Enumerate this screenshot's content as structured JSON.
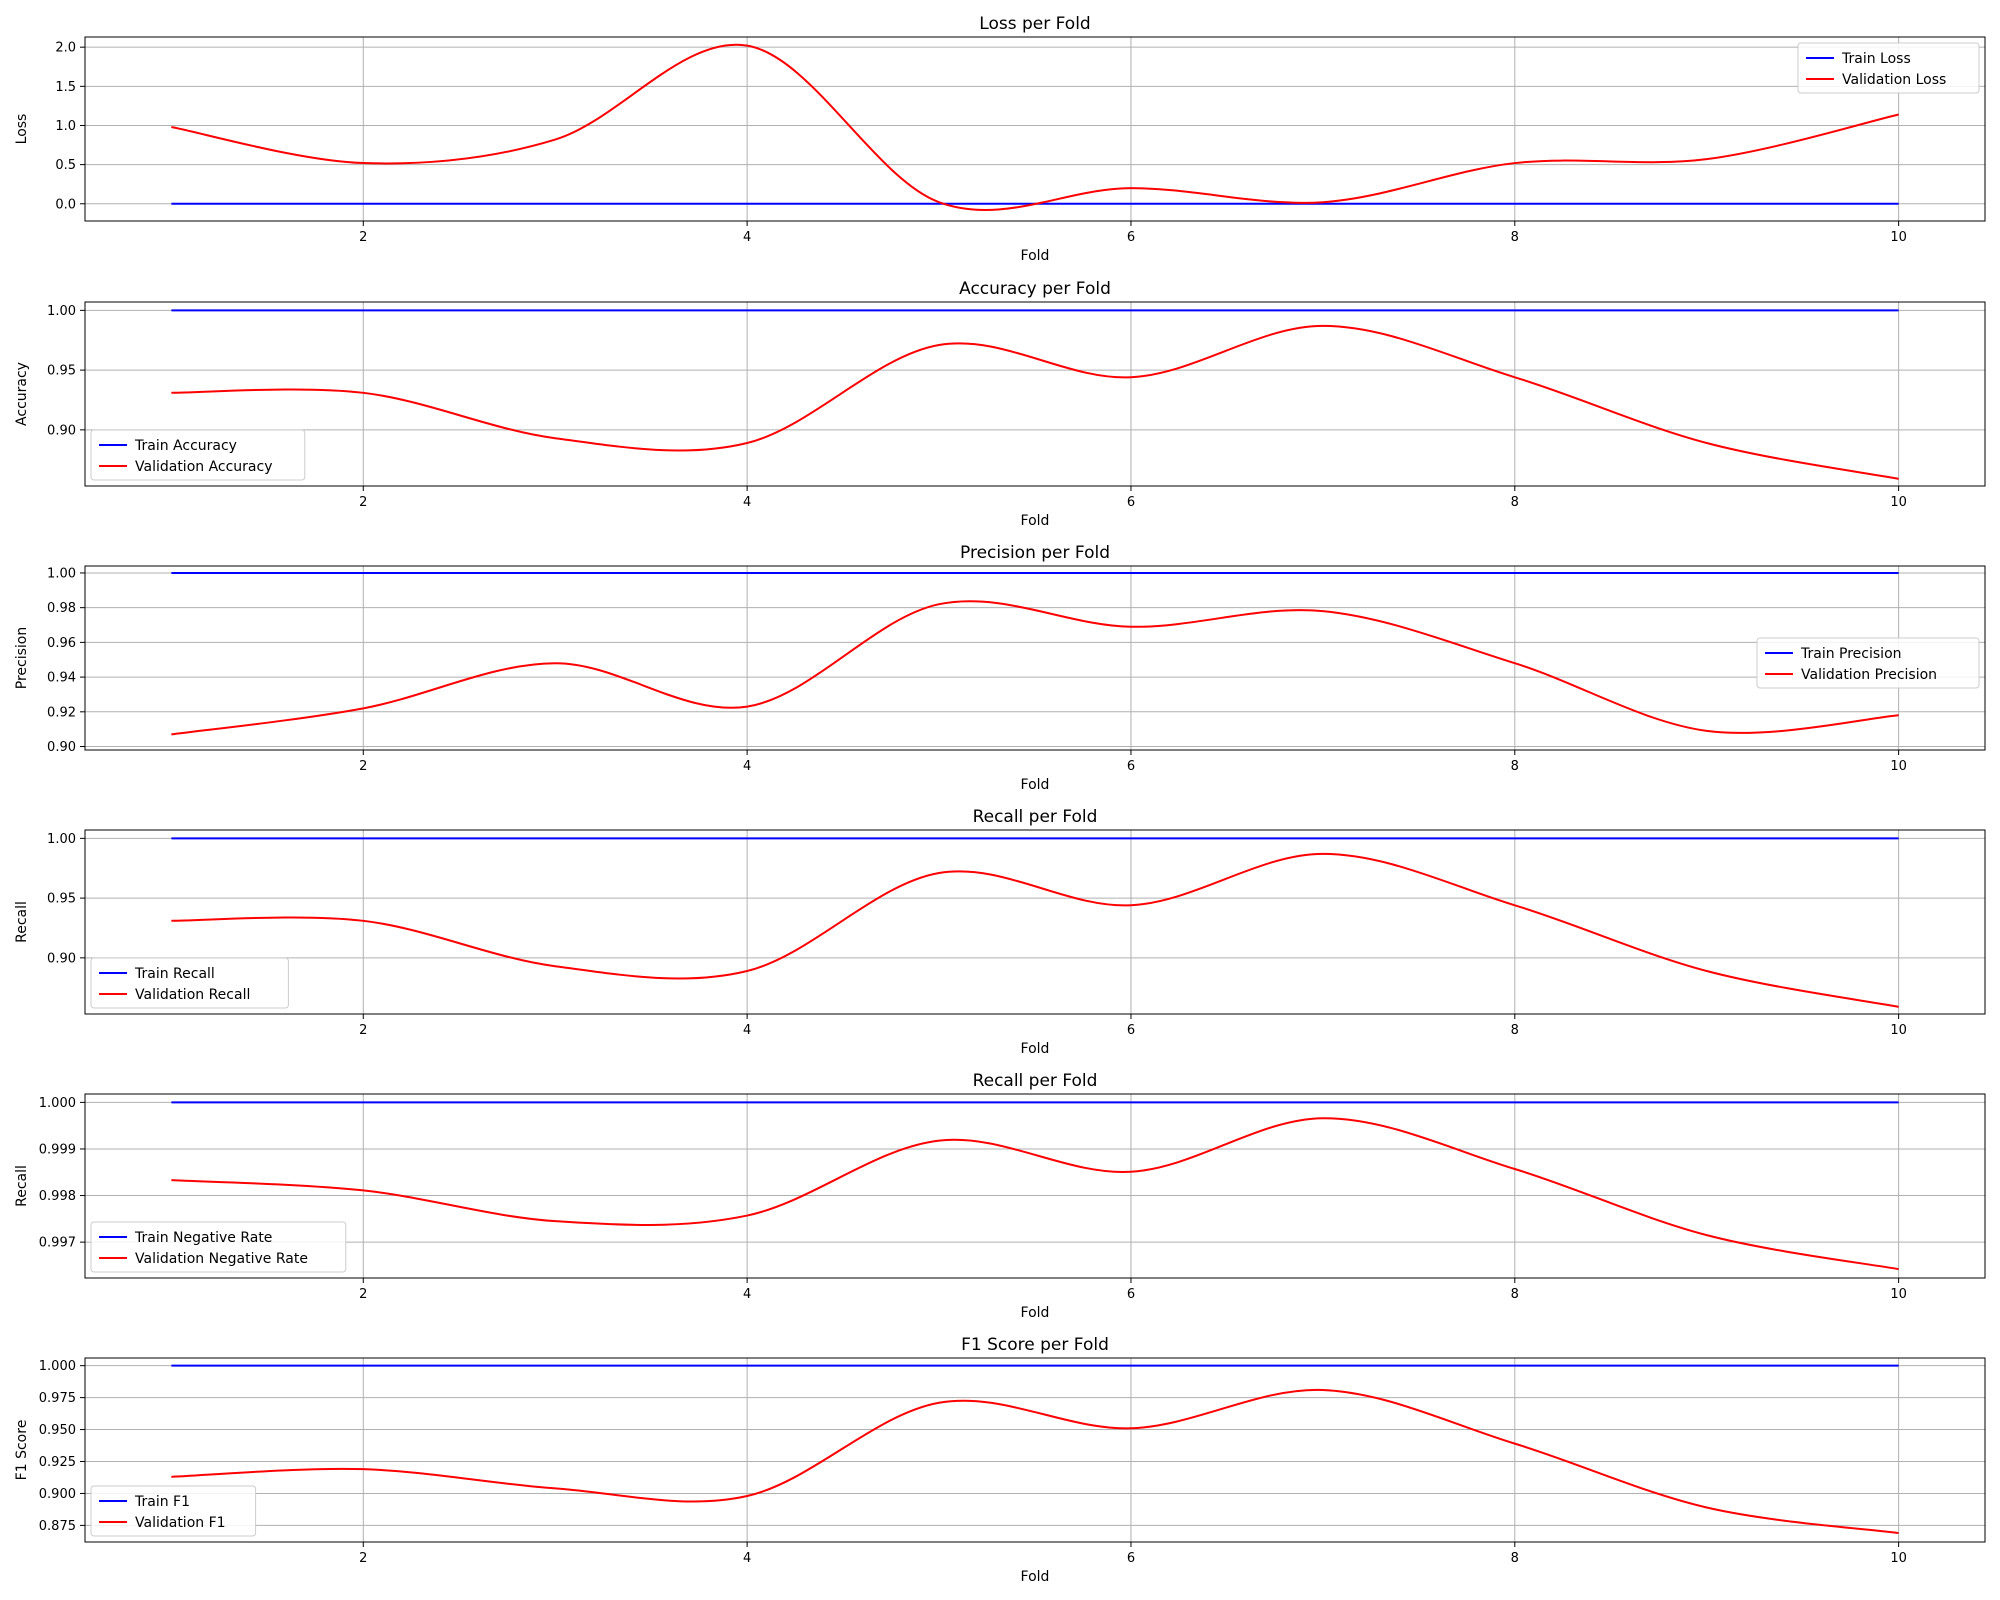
{
  "chart_data": [
    {
      "type": "line",
      "title": "Loss per Fold",
      "xlabel": "Fold",
      "ylabel": "Loss",
      "xlim": [
        0.55,
        10.45
      ],
      "ylim": [
        -0.22,
        2.13
      ],
      "xticks": [
        2,
        4,
        6,
        8,
        10
      ],
      "yticks": [
        0.0,
        0.5,
        1.0,
        1.5,
        2.0
      ],
      "ytick_labels": [
        "0.0",
        "0.5",
        "1.0",
        "1.5",
        "2.0"
      ],
      "grid": true,
      "legend_position": "upper right",
      "x": [
        1,
        2,
        3,
        4,
        5,
        6,
        7,
        8,
        9,
        10
      ],
      "series": [
        {
          "name": "Train Loss",
          "color": "#0000ff",
          "values": [
            0,
            0,
            0,
            0,
            0,
            0,
            0,
            0,
            0,
            0
          ]
        },
        {
          "name": "Validation Loss",
          "color": "#ff0000",
          "values": [
            0.98,
            0.52,
            0.82,
            2.02,
            0.02,
            0.2,
            0.02,
            0.52,
            0.57,
            1.14
          ]
        }
      ]
    },
    {
      "type": "line",
      "title": "Accuracy per Fold",
      "xlabel": "Fold",
      "ylabel": "Accuracy",
      "xlim": [
        0.55,
        10.45
      ],
      "ylim": [
        0.853,
        1.007
      ],
      "xticks": [
        2,
        4,
        6,
        8,
        10
      ],
      "yticks": [
        0.9,
        0.95,
        1.0
      ],
      "ytick_labels": [
        "0.90",
        "0.95",
        "1.00"
      ],
      "grid": true,
      "legend_position": "lower left",
      "x": [
        1,
        2,
        3,
        4,
        5,
        6,
        7,
        8,
        9,
        10
      ],
      "series": [
        {
          "name": "Train Accuracy",
          "color": "#0000ff",
          "values": [
            1,
            1,
            1,
            1,
            1,
            1,
            1,
            1,
            1,
            1
          ]
        },
        {
          "name": "Validation Accuracy",
          "color": "#ff0000",
          "values": [
            0.931,
            0.931,
            0.893,
            0.889,
            0.971,
            0.944,
            0.987,
            0.944,
            0.889,
            0.859
          ]
        }
      ]
    },
    {
      "type": "line",
      "title": "Precision per Fold",
      "xlabel": "Fold",
      "ylabel": "Precision",
      "xlim": [
        0.55,
        10.45
      ],
      "ylim": [
        0.898,
        1.004
      ],
      "xticks": [
        2,
        4,
        6,
        8,
        10
      ],
      "yticks": [
        0.9,
        0.92,
        0.94,
        0.96,
        0.98,
        1.0
      ],
      "ytick_labels": [
        "0.90",
        "0.92",
        "0.94",
        "0.96",
        "0.98",
        "1.00"
      ],
      "grid": true,
      "legend_position": "center right",
      "x": [
        1,
        2,
        3,
        4,
        5,
        6,
        7,
        8,
        9,
        10
      ],
      "series": [
        {
          "name": "Train Precision",
          "color": "#0000ff",
          "values": [
            1,
            1,
            1,
            1,
            1,
            1,
            1,
            1,
            1,
            1
          ]
        },
        {
          "name": "Validation Precision",
          "color": "#ff0000",
          "values": [
            0.907,
            0.922,
            0.948,
            0.923,
            0.982,
            0.969,
            0.978,
            0.948,
            0.909,
            0.918
          ]
        }
      ]
    },
    {
      "type": "line",
      "title": "Recall per Fold",
      "xlabel": "Fold",
      "ylabel": "Recall",
      "xlim": [
        0.55,
        10.45
      ],
      "ylim": [
        0.853,
        1.007
      ],
      "xticks": [
        2,
        4,
        6,
        8,
        10
      ],
      "yticks": [
        0.9,
        0.95,
        1.0
      ],
      "ytick_labels": [
        "0.90",
        "0.95",
        "1.00"
      ],
      "grid": true,
      "legend_position": "lower left",
      "x": [
        1,
        2,
        3,
        4,
        5,
        6,
        7,
        8,
        9,
        10
      ],
      "series": [
        {
          "name": "Train Recall",
          "color": "#0000ff",
          "values": [
            1,
            1,
            1,
            1,
            1,
            1,
            1,
            1,
            1,
            1
          ]
        },
        {
          "name": "Validation Recall",
          "color": "#ff0000",
          "values": [
            0.931,
            0.931,
            0.893,
            0.889,
            0.971,
            0.944,
            0.987,
            0.944,
            0.889,
            0.859
          ]
        }
      ]
    },
    {
      "type": "line",
      "title": "Recall per Fold",
      "xlabel": "Fold",
      "ylabel": "Recall",
      "xlim": [
        0.55,
        10.45
      ],
      "ylim": [
        0.99623,
        1.00018
      ],
      "xticks": [
        2,
        4,
        6,
        8,
        10
      ],
      "yticks": [
        0.997,
        0.998,
        0.999,
        1.0
      ],
      "ytick_labels": [
        "0.997",
        "0.998",
        "0.999",
        "1.000"
      ],
      "grid": true,
      "legend_position": "lower left",
      "x": [
        1,
        2,
        3,
        4,
        5,
        6,
        7,
        8,
        9,
        10
      ],
      "series": [
        {
          "name": "Train Negative Rate",
          "color": "#0000ff",
          "values": [
            1,
            1,
            1,
            1,
            1,
            1,
            1,
            1,
            1,
            1
          ]
        },
        {
          "name": "Validation Negative Rate",
          "color": "#ff0000",
          "values": [
            0.99833,
            0.99811,
            0.99745,
            0.99757,
            0.99918,
            0.99851,
            0.99966,
            0.99857,
            0.99715,
            0.99642
          ]
        }
      ]
    },
    {
      "type": "line",
      "title": "F1 Score per Fold",
      "xlabel": "Fold",
      "ylabel": "F1 Score",
      "xlim": [
        0.55,
        10.45
      ],
      "ylim": [
        0.862,
        1.006
      ],
      "xticks": [
        2,
        4,
        6,
        8,
        10
      ],
      "yticks": [
        0.875,
        0.9,
        0.925,
        0.95,
        0.975,
        1.0
      ],
      "ytick_labels": [
        "0.875",
        "0.900",
        "0.925",
        "0.950",
        "0.975",
        "1.000"
      ],
      "grid": true,
      "legend_position": "lower left",
      "x": [
        1,
        2,
        3,
        4,
        5,
        6,
        7,
        8,
        9,
        10
      ],
      "series": [
        {
          "name": "Train F1",
          "color": "#0000ff",
          "values": [
            1,
            1,
            1,
            1,
            1,
            1,
            1,
            1,
            1,
            1
          ]
        },
        {
          "name": "Validation F1",
          "color": "#ff0000",
          "values": [
            0.913,
            0.919,
            0.904,
            0.898,
            0.971,
            0.951,
            0.981,
            0.939,
            0.889,
            0.869
          ]
        }
      ]
    }
  ]
}
